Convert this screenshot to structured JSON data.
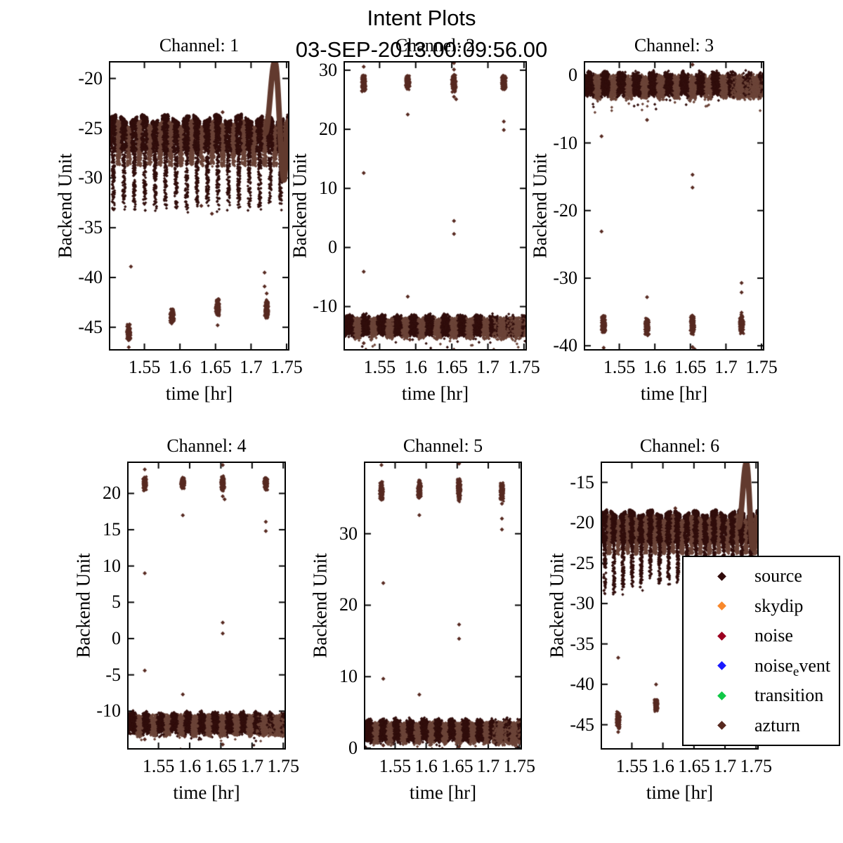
{
  "header": {
    "title": "Intent Plots",
    "subtitle": "03-SEP-2013.00:09:56.00"
  },
  "colors": {
    "source": "#300b0b",
    "skydip": "#f8882b",
    "noise": "#9c0020",
    "noise_event": "#1a1aff",
    "transition": "#0fc846",
    "azturn": "#57291f",
    "band_dark": "#310e0c",
    "band_brown": "#6b4438",
    "cluster": "#572a21",
    "spike": "#623a2e",
    "axis": "#000000",
    "background": "#ffffff"
  },
  "legend": {
    "items": [
      {
        "label": "source",
        "sub": "",
        "tail": "",
        "color": "source"
      },
      {
        "label": "skydip",
        "sub": "",
        "tail": "",
        "color": "skydip"
      },
      {
        "label": "noise",
        "sub": "",
        "tail": "",
        "color": "noise"
      },
      {
        "label": "noise",
        "sub": "e",
        "tail": "vent",
        "color": "noise_event"
      },
      {
        "label": "transition",
        "sub": "",
        "tail": "",
        "color": "transition"
      },
      {
        "label": "azturn",
        "sub": "",
        "tail": "",
        "color": "azturn"
      }
    ]
  },
  "chart_data": [
    {
      "type": "scatter",
      "title": "Channel: 1",
      "xlabel": "time [hr]",
      "ylabel": "Backend Unit",
      "xlim": [
        1.502,
        1.752
      ],
      "xticks": [
        1.55,
        1.6,
        1.65,
        1.7,
        1.75
      ],
      "xtick_labels": [
        "1.55",
        "1.6",
        "1.65",
        "1.7",
        "1.75"
      ],
      "ylim": [
        -47.2,
        -18.4
      ],
      "yticks": [
        -20,
        -25,
        -30,
        -35,
        -40,
        -45
      ],
      "band": {
        "style": "oscillating",
        "top": -23.9,
        "typical_bottom": -27.2,
        "dip_bottom": -31.8,
        "dip_period": 0.0147
      },
      "spike": {
        "x_start": 1.72,
        "y_start": -25.5,
        "x_peak": 1.7335,
        "peak_y": -18.3,
        "x_valley": 1.7465,
        "valley_y": -30.2,
        "x_end": 1.752,
        "end_y": -24.3
      },
      "clusters": [
        {
          "x": 1.528,
          "y_min": -46.4,
          "y_max": -44.6
        },
        {
          "x": 1.589,
          "y_min": -44.7,
          "y_max": -43.0
        },
        {
          "x": 1.653,
          "y_min": -43.9,
          "y_max": -42.1
        },
        {
          "x": 1.722,
          "y_min": -44.2,
          "y_max": -42.2
        }
      ],
      "outliers": [
        [
          1.531,
          -38.9
        ],
        [
          1.528,
          -47.0
        ],
        [
          1.63,
          -32.8
        ],
        [
          1.645,
          -33.6
        ],
        [
          1.653,
          -44.8
        ],
        [
          1.719,
          -39.5
        ],
        [
          1.719,
          -40.9
        ],
        [
          1.722,
          -41.6
        ],
        [
          1.66,
          -23.4
        ]
      ]
    },
    {
      "type": "scatter",
      "title": "Channel: 2",
      "xlabel": "time [hr]",
      "ylabel": "Backend Unit",
      "xlim": [
        1.502,
        1.752
      ],
      "xticks": [
        1.55,
        1.6,
        1.65,
        1.7,
        1.75
      ],
      "xtick_labels": [
        "1.55",
        "1.6",
        "1.65",
        "1.7",
        "1.75"
      ],
      "ylim": [
        -17.2,
        31.3
      ],
      "yticks": [
        30,
        20,
        10,
        0,
        -10
      ],
      "band": {
        "style": "flat",
        "center": -13.3,
        "halfwidth": 1.7
      },
      "spike": null,
      "clusters": [
        {
          "x": 1.528,
          "y_min": 26.3,
          "y_max": 29.3
        },
        {
          "x": 1.589,
          "y_min": 26.6,
          "y_max": 29.2
        },
        {
          "x": 1.653,
          "y_min": 26.2,
          "y_max": 29.5
        },
        {
          "x": 1.722,
          "y_min": 26.6,
          "y_max": 29.3
        }
      ],
      "outliers": [
        [
          1.528,
          30.6
        ],
        [
          1.528,
          12.6
        ],
        [
          1.528,
          -4.1
        ],
        [
          1.528,
          -16.2
        ],
        [
          1.531,
          -17.3
        ],
        [
          1.589,
          22.5
        ],
        [
          1.589,
          -8.3
        ],
        [
          1.592,
          -15.6
        ],
        [
          1.653,
          31.2
        ],
        [
          1.653,
          30.1
        ],
        [
          1.653,
          25.5
        ],
        [
          1.656,
          25.1
        ],
        [
          1.653,
          4.5
        ],
        [
          1.653,
          2.3
        ],
        [
          1.653,
          -17.3
        ],
        [
          1.722,
          21.3
        ],
        [
          1.722,
          19.9
        ]
      ]
    },
    {
      "type": "scatter",
      "title": "Channel: 3",
      "xlabel": "time [hr]",
      "ylabel": "Backend Unit",
      "xlim": [
        1.502,
        1.752
      ],
      "xticks": [
        1.55,
        1.6,
        1.65,
        1.7,
        1.75
      ],
      "xtick_labels": [
        "1.55",
        "1.6",
        "1.65",
        "1.7",
        "1.75"
      ],
      "ylim": [
        -40.5,
        1.9
      ],
      "yticks": [
        0,
        -10,
        -20,
        -30,
        -40
      ],
      "band": {
        "style": "flat",
        "center": -1.4,
        "halfwidth": 1.7
      },
      "spike": null,
      "clusters": [
        {
          "x": 1.528,
          "y_min": -38.3,
          "y_max": -35.4
        },
        {
          "x": 1.589,
          "y_min": -38.6,
          "y_max": -35.8
        },
        {
          "x": 1.653,
          "y_min": -38.5,
          "y_max": -35.2
        },
        {
          "x": 1.722,
          "y_min": -38.3,
          "y_max": -35.3
        }
      ],
      "outliers": [
        [
          1.525,
          -9.0
        ],
        [
          1.525,
          -23.1
        ],
        [
          1.528,
          -40.3
        ],
        [
          1.589,
          -6.6
        ],
        [
          1.589,
          -32.8
        ],
        [
          1.653,
          -14.7
        ],
        [
          1.653,
          -16.6
        ],
        [
          1.653,
          -40.2
        ],
        [
          1.656,
          -40.5
        ],
        [
          1.722,
          -30.7
        ],
        [
          1.722,
          -32.1
        ],
        [
          1.722,
          -35.1
        ],
        [
          1.653,
          1.6
        ]
      ]
    },
    {
      "type": "scatter",
      "title": "Channel: 4",
      "xlabel": "time [hr]",
      "ylabel": "Backend Unit",
      "xlim": [
        1.502,
        1.752
      ],
      "xticks": [
        1.55,
        1.6,
        1.65,
        1.7,
        1.75
      ],
      "xtick_labels": [
        "1.55",
        "1.6",
        "1.65",
        "1.7",
        "1.75"
      ],
      "ylim": [
        -15.1,
        24.2
      ],
      "yticks": [
        20,
        15,
        10,
        5,
        0,
        -5,
        -10
      ],
      "band": {
        "style": "flat",
        "center": -11.7,
        "halfwidth": 1.4
      },
      "spike": null,
      "clusters": [
        {
          "x": 1.528,
          "y_min": 20.3,
          "y_max": 22.4
        },
        {
          "x": 1.589,
          "y_min": 20.5,
          "y_max": 22.3
        },
        {
          "x": 1.653,
          "y_min": 20.3,
          "y_max": 22.5
        },
        {
          "x": 1.722,
          "y_min": 20.4,
          "y_max": 22.3
        }
      ],
      "outliers": [
        [
          1.528,
          23.3
        ],
        [
          1.528,
          9.0
        ],
        [
          1.528,
          -4.4
        ],
        [
          1.528,
          -13.9
        ],
        [
          1.589,
          17.0
        ],
        [
          1.589,
          -7.7
        ],
        [
          1.592,
          -13.5
        ],
        [
          1.653,
          23.9
        ],
        [
          1.653,
          19.6
        ],
        [
          1.656,
          19.2
        ],
        [
          1.653,
          2.2
        ],
        [
          1.653,
          0.7
        ],
        [
          1.653,
          -14.6
        ],
        [
          1.722,
          16.1
        ],
        [
          1.722,
          14.8
        ]
      ]
    },
    {
      "type": "scatter",
      "title": "Channel: 5",
      "xlabel": "time [hr]",
      "ylabel": "Backend Unit",
      "xlim": [
        1.502,
        1.752
      ],
      "xticks": [
        1.55,
        1.6,
        1.65,
        1.7,
        1.75
      ],
      "xtick_labels": [
        "1.55",
        "1.6",
        "1.65",
        "1.7",
        "1.75"
      ],
      "ylim": [
        0,
        39.9
      ],
      "yticks": [
        30,
        20,
        10,
        0
      ],
      "band": {
        "style": "flat",
        "center": 2.4,
        "halfwidth": 1.5
      },
      "spike": null,
      "clusters": [
        {
          "x": 1.528,
          "y_min": 34.6,
          "y_max": 37.4
        },
        {
          "x": 1.589,
          "y_min": 34.8,
          "y_max": 37.6
        },
        {
          "x": 1.653,
          "y_min": 34.4,
          "y_max": 37.9
        },
        {
          "x": 1.722,
          "y_min": 34.5,
          "y_max": 37.3
        }
      ],
      "outliers": [
        [
          1.528,
          39.6
        ],
        [
          1.531,
          23.1
        ],
        [
          1.531,
          9.7
        ],
        [
          1.531,
          0.4
        ],
        [
          1.589,
          32.6
        ],
        [
          1.589,
          7.5
        ],
        [
          1.653,
          39.8
        ],
        [
          1.653,
          17.3
        ],
        [
          1.653,
          15.3
        ],
        [
          1.653,
          0.2
        ],
        [
          1.722,
          32.1
        ],
        [
          1.722,
          30.6
        ],
        [
          1.722,
          34.2
        ]
      ]
    },
    {
      "type": "scatter",
      "title": "Channel: 6",
      "xlabel": "time [hr]",
      "ylabel": "Backend Unit",
      "xlim": [
        1.502,
        1.752
      ],
      "xticks": [
        1.55,
        1.6,
        1.65,
        1.7,
        1.75
      ],
      "xtick_labels": [
        "1.55",
        "1.6",
        "1.65",
        "1.7",
        "1.75"
      ],
      "ylim": [
        -47.9,
        -12.6
      ],
      "yticks": [
        -15,
        -20,
        -25,
        -30,
        -35,
        -40,
        -45
      ],
      "band": {
        "style": "oscillating",
        "top": -18.7,
        "typical_bottom": -22.3,
        "dip_bottom": -27.6,
        "dip_period": 0.0147
      },
      "spike": {
        "x_start": 1.722,
        "y_start": -20.5,
        "x_peak": 1.7345,
        "peak_y": -12.6,
        "x_valley": 1.745,
        "valley_y": -23.2,
        "x_end": 1.752,
        "end_y": -19.5
      },
      "clusters": [
        {
          "x": 1.528,
          "y_min": -45.6,
          "y_max": -43.3
        },
        {
          "x": 1.589,
          "y_min": -43.4,
          "y_max": -41.8
        }
      ],
      "outliers": [
        [
          1.528,
          -36.7
        ],
        [
          1.528,
          -45.9
        ],
        [
          1.589,
          -40.0
        ],
        [
          1.62,
          -18.2
        ]
      ]
    }
  ]
}
